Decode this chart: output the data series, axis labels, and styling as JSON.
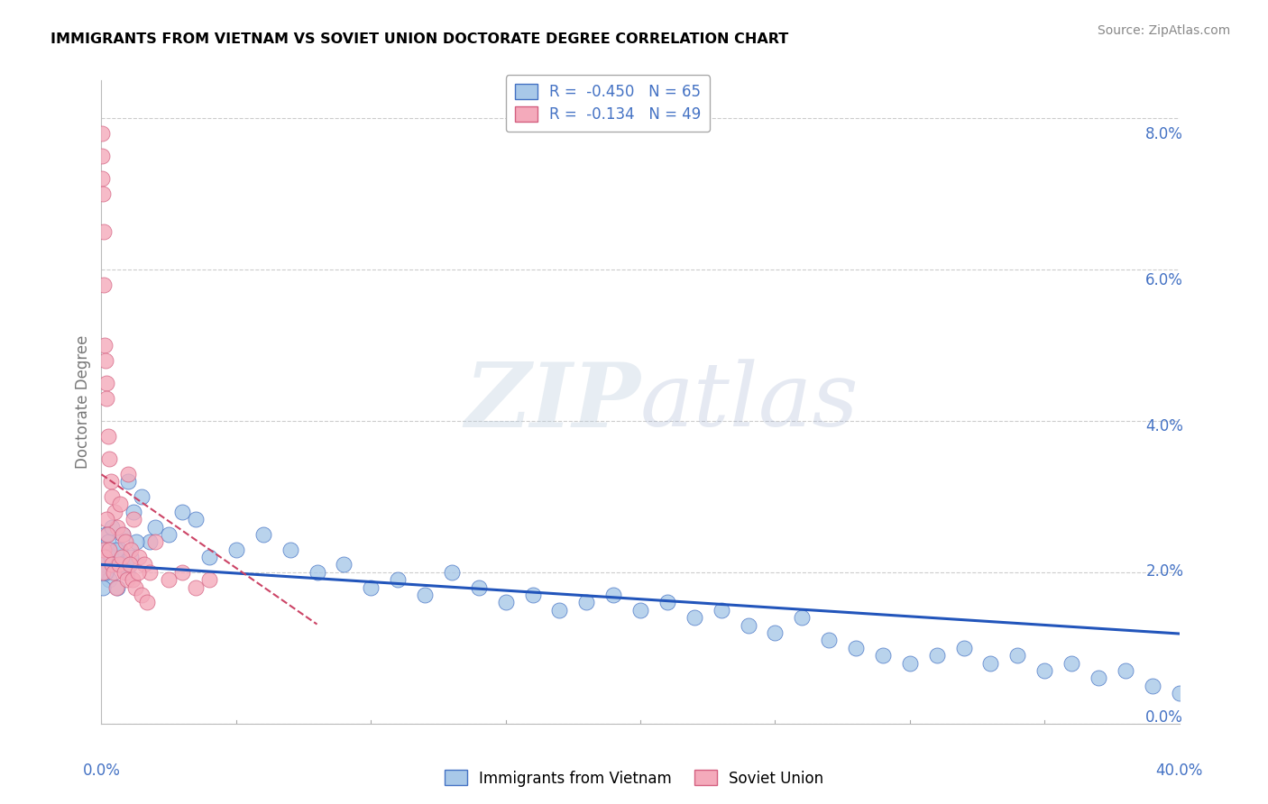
{
  "title": "IMMIGRANTS FROM VIETNAM VS SOVIET UNION DOCTORATE DEGREE CORRELATION CHART",
  "source": "Source: ZipAtlas.com",
  "ylabel": "Doctorate Degree",
  "ylabel_right_vals": [
    0.0,
    2.0,
    4.0,
    6.0,
    8.0
  ],
  "legend1_r": "-0.450",
  "legend1_n": "65",
  "legend2_r": "-0.134",
  "legend2_n": "49",
  "color_blue": "#A8C8E8",
  "color_pink": "#F4AABB",
  "color_blue_edge": "#4472C4",
  "color_pink_edge": "#D46080",
  "color_blue_line": "#2255BB",
  "color_pink_line": "#CC4466",
  "background": "#FFFFFF",
  "grid_color": "#CCCCCC",
  "vietnam_x": [
    0.05,
    0.1,
    0.15,
    0.2,
    0.25,
    0.3,
    0.4,
    0.5,
    0.6,
    0.7,
    0.8,
    0.9,
    1.0,
    1.2,
    1.5,
    1.8,
    2.0,
    2.5,
    3.0,
    3.5,
    4.0,
    5.0,
    6.0,
    7.0,
    8.0,
    9.0,
    10.0,
    11.0,
    12.0,
    13.0,
    14.0,
    15.0,
    16.0,
    17.0,
    18.0,
    19.0,
    20.0,
    21.0,
    22.0,
    23.0,
    24.0,
    25.0,
    26.0,
    27.0,
    28.0,
    29.0,
    30.0,
    31.0,
    32.0,
    33.0,
    34.0,
    35.0,
    36.0,
    37.0,
    38.0,
    39.0,
    40.0,
    0.05,
    0.15,
    0.35,
    0.55,
    0.75,
    0.95,
    1.1,
    1.3
  ],
  "vietnam_y": [
    2.3,
    2.1,
    2.5,
    2.0,
    2.4,
    1.9,
    2.6,
    2.2,
    1.8,
    2.3,
    2.5,
    2.1,
    3.2,
    2.8,
    3.0,
    2.4,
    2.6,
    2.5,
    2.8,
    2.7,
    2.2,
    2.3,
    2.5,
    2.3,
    2.0,
    2.1,
    1.8,
    1.9,
    1.7,
    2.0,
    1.8,
    1.6,
    1.7,
    1.5,
    1.6,
    1.7,
    1.5,
    1.6,
    1.4,
    1.5,
    1.3,
    1.2,
    1.4,
    1.1,
    1.0,
    0.9,
    0.8,
    0.9,
    1.0,
    0.8,
    0.9,
    0.7,
    0.8,
    0.6,
    0.7,
    0.5,
    0.4,
    1.8,
    2.0,
    2.2,
    2.3,
    2.1,
    2.0,
    2.2,
    2.4
  ],
  "soviet_x": [
    0.01,
    0.02,
    0.03,
    0.05,
    0.07,
    0.1,
    0.12,
    0.15,
    0.18,
    0.2,
    0.25,
    0.3,
    0.35,
    0.4,
    0.5,
    0.6,
    0.7,
    0.8,
    0.9,
    1.0,
    1.1,
    1.2,
    1.4,
    1.6,
    1.8,
    2.0,
    2.5,
    3.0,
    3.5,
    4.0,
    0.05,
    0.08,
    0.12,
    0.18,
    0.22,
    0.28,
    0.38,
    0.45,
    0.55,
    0.65,
    0.75,
    0.85,
    0.95,
    1.05,
    1.15,
    1.25,
    1.35,
    1.5,
    1.7
  ],
  "soviet_y": [
    7.8,
    7.5,
    7.2,
    7.0,
    6.5,
    5.8,
    5.0,
    4.8,
    4.5,
    4.3,
    3.8,
    3.5,
    3.2,
    3.0,
    2.8,
    2.6,
    2.9,
    2.5,
    2.4,
    3.3,
    2.3,
    2.7,
    2.2,
    2.1,
    2.0,
    2.4,
    1.9,
    2.0,
    1.8,
    1.9,
    2.0,
    2.3,
    2.2,
    2.7,
    2.5,
    2.3,
    2.1,
    2.0,
    1.8,
    2.1,
    2.2,
    2.0,
    1.9,
    2.1,
    1.9,
    1.8,
    2.0,
    1.7,
    1.6
  ],
  "x_min": 0.0,
  "x_max": 40.0,
  "y_min": 0.0,
  "y_max": 8.5
}
